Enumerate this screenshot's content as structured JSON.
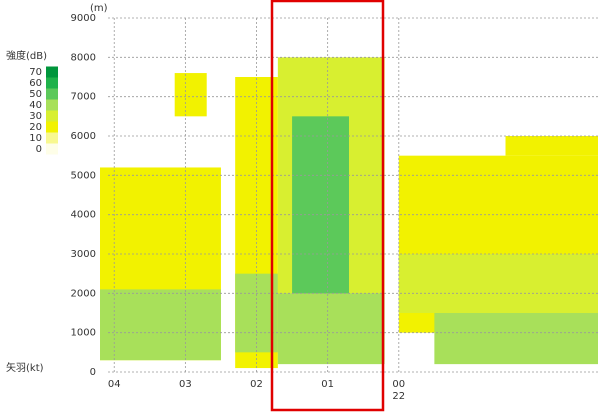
{
  "chart_data": {
    "type": "heatmap",
    "y_unit_label": "(m)",
    "legend_title": "強度(dB)",
    "barb_label": "矢羽(kt)",
    "levels": [
      {
        "value": 70,
        "color": "#00963c"
      },
      {
        "value": 60,
        "color": "#1fb24a"
      },
      {
        "value": 50,
        "color": "#5cc95a"
      },
      {
        "value": 40,
        "color": "#a8e05a"
      },
      {
        "value": 30,
        "color": "#d8ef30"
      },
      {
        "value": 20,
        "color": "#f2f200"
      },
      {
        "value": 10,
        "color": "#f8f890"
      },
      {
        "value": 0,
        "color": "#fefee8"
      }
    ],
    "xlim": [
      -0.2,
      6.8
    ],
    "xticks": [
      {
        "value": 0,
        "label": "04"
      },
      {
        "value": 1,
        "label": "03"
      },
      {
        "value": 2,
        "label": "02"
      },
      {
        "value": 3,
        "label": "01"
      },
      {
        "value": 4,
        "label": "00"
      }
    ],
    "date_label": "22",
    "ylim": [
      0,
      9000
    ],
    "yticks": [
      0,
      1000,
      2000,
      3000,
      4000,
      5000,
      6000,
      7000,
      8000,
      9000
    ],
    "grid": true,
    "cells": [
      {
        "x": [
          -0.2,
          1.5
        ],
        "y": [
          300,
          5200
        ],
        "value": 20
      },
      {
        "x": [
          -0.2,
          1.5
        ],
        "y": [
          300,
          2100
        ],
        "value": 40
      },
      {
        "x": [
          0.85,
          1.3
        ],
        "y": [
          6500,
          7600
        ],
        "value": 20
      },
      {
        "x": [
          1.7,
          2.3
        ],
        "y": [
          100,
          7500
        ],
        "value": 20
      },
      {
        "x": [
          1.7,
          2.3
        ],
        "y": [
          500,
          2500
        ],
        "value": 40
      },
      {
        "x": [
          2.3,
          3.8
        ],
        "y": [
          300,
          8000
        ],
        "value": 30
      },
      {
        "x": [
          2.5,
          3.3
        ],
        "y": [
          1500,
          6500
        ],
        "value": 50
      },
      {
        "x": [
          2.3,
          3.8
        ],
        "y": [
          200,
          2000
        ],
        "value": 40
      },
      {
        "x": [
          4.0,
          6.8
        ],
        "y": [
          1000,
          5500
        ],
        "value": 20
      },
      {
        "x": [
          4.0,
          6.8
        ],
        "y": [
          1500,
          3000
        ],
        "value": 30
      },
      {
        "x": [
          4.5,
          6.8
        ],
        "y": [
          200,
          1500
        ],
        "value": 40
      },
      {
        "x": [
          5.5,
          6.8
        ],
        "y": [
          5500,
          6000
        ],
        "value": 20
      }
    ]
  }
}
